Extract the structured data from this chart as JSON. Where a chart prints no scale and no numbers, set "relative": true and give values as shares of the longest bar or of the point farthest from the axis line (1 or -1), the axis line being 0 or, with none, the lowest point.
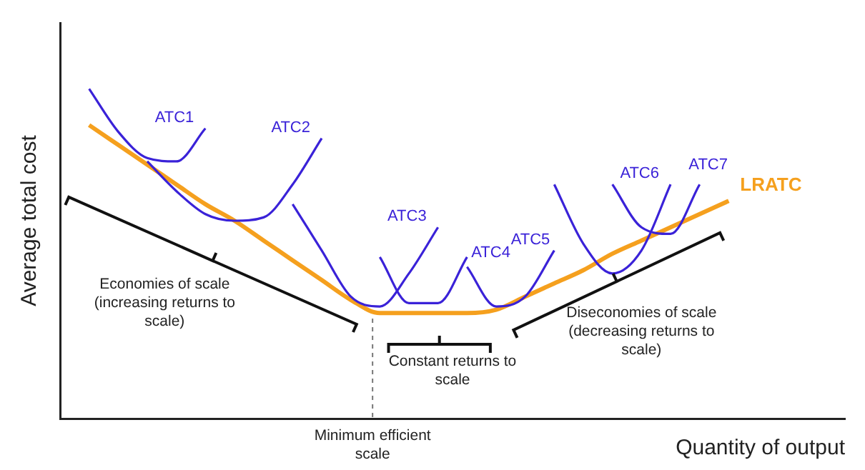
{
  "chart_data": {
    "type": "line",
    "relative": true,
    "marker": "none",
    "legend": false,
    "grid": false,
    "xlabel": "Quantity of output",
    "ylabel": "Average total cost",
    "categories": [
      null,
      null,
      null,
      null,
      null,
      null,
      null,
      null,
      null,
      null,
      null,
      null,
      null,
      null,
      null,
      null,
      null,
      null,
      null,
      null,
      null,
      null,
      null,
      null,
      null,
      null,
      null,
      null
    ],
    "series": [
      {
        "name": "ATC1",
        "color": "#3a22d8",
        "values": [
          null,
          1.0,
          0.87,
          0.79,
          0.78,
          0.88,
          null,
          null,
          null,
          null,
          null,
          null,
          null,
          null,
          null,
          null,
          null,
          null,
          null,
          null,
          null,
          null,
          null,
          null,
          null,
          null,
          null,
          null
        ]
      },
      {
        "name": "ATC2",
        "color": "#3a22d8",
        "values": [
          null,
          null,
          null,
          0.78,
          0.69,
          0.62,
          0.6,
          0.61,
          0.71,
          0.85,
          null,
          null,
          null,
          null,
          null,
          null,
          null,
          null,
          null,
          null,
          null,
          null,
          null,
          null,
          null,
          null,
          null,
          null
        ]
      },
      {
        "name": "ATC3",
        "color": "#3a22d8",
        "values": [
          null,
          null,
          null,
          null,
          null,
          null,
          null,
          null,
          0.65,
          0.51,
          0.37,
          0.34,
          0.44,
          0.58,
          null,
          null,
          null,
          null,
          null,
          null,
          null,
          null,
          null,
          null,
          null,
          null,
          null,
          null
        ]
      },
      {
        "name": "ATC4",
        "color": "#3a22d8",
        "values": [
          null,
          null,
          null,
          null,
          null,
          null,
          null,
          null,
          null,
          null,
          null,
          0.49,
          0.35,
          0.35,
          0.49,
          null,
          null,
          null,
          null,
          null,
          null,
          null,
          null,
          null,
          null,
          null,
          null,
          null
        ]
      },
      {
        "name": "ATC5",
        "color": "#3a22d8",
        "values": [
          null,
          null,
          null,
          null,
          null,
          null,
          null,
          null,
          null,
          null,
          null,
          null,
          null,
          null,
          0.46,
          0.34,
          0.37,
          0.51,
          null,
          null,
          null,
          null,
          null,
          null,
          null,
          null,
          null,
          null
        ]
      },
      {
        "name": "ATC6",
        "color": "#3a22d8",
        "values": [
          null,
          null,
          null,
          null,
          null,
          null,
          null,
          null,
          null,
          null,
          null,
          null,
          null,
          null,
          null,
          null,
          null,
          0.71,
          0.53,
          0.44,
          0.51,
          0.71,
          null,
          null,
          null,
          null,
          null,
          null
        ]
      },
      {
        "name": "ATC7",
        "color": "#3a22d8",
        "values": [
          null,
          null,
          null,
          null,
          null,
          null,
          null,
          null,
          null,
          null,
          null,
          null,
          null,
          null,
          null,
          null,
          null,
          null,
          null,
          0.71,
          0.58,
          0.56,
          0.71,
          null,
          null,
          null,
          null,
          null
        ]
      },
      {
        "name": "LRATC",
        "color": "#f5a01e",
        "values": [
          null,
          0.89,
          0.83,
          0.77,
          0.71,
          0.65,
          0.6,
          0.54,
          0.48,
          0.42,
          0.36,
          0.32,
          0.32,
          0.32,
          0.32,
          0.33,
          0.37,
          0.41,
          0.45,
          0.5,
          0.54,
          0.58,
          0.62,
          0.66,
          null,
          null,
          null,
          null
        ]
      }
    ],
    "annotations": [
      "Economies of scale (increasing returns to scale)",
      "Constant returns to scale",
      "Diseconomies of scale (decreasing returns to scale)",
      "Minimum efficient scale"
    ]
  }
}
